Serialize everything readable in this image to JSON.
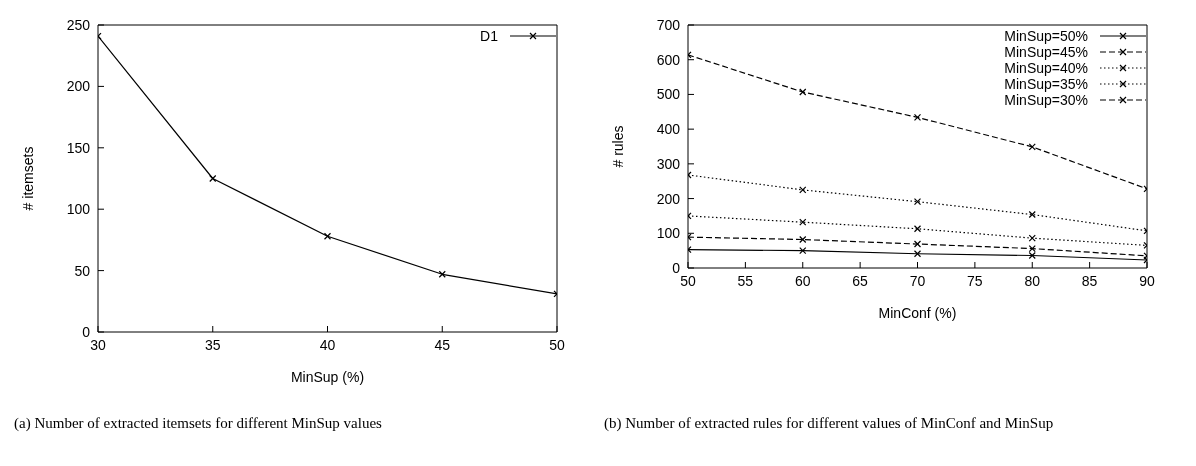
{
  "chart_data": [
    {
      "type": "line",
      "x": [
        30,
        35,
        40,
        45,
        50
      ],
      "xlabel": "MinSup (%)",
      "ylabel": "# itemsets",
      "xlim": [
        30,
        50
      ],
      "xticks": [
        30,
        35,
        40,
        45,
        50
      ],
      "ylim": [
        0,
        250
      ],
      "yticks": [
        0,
        50,
        100,
        150,
        200,
        250
      ],
      "grid": false,
      "legend": "top right",
      "marker": "cross",
      "series": [
        {
          "name": "D1",
          "color": "#000000",
          "line_style": "solid",
          "values": [
            241,
            125,
            78,
            47,
            31
          ]
        }
      ],
      "annotations": [
        "(a) Number of extracted itemsets for different MinSup values"
      ]
    },
    {
      "type": "line",
      "x": [
        50,
        60,
        70,
        80,
        90
      ],
      "xlabel": "MinConf (%)",
      "ylabel": "# rules",
      "xlim": [
        50,
        90
      ],
      "xticks": [
        50,
        55,
        60,
        65,
        70,
        75,
        80,
        85,
        90
      ],
      "ylim": [
        0,
        700
      ],
      "yticks": [
        0,
        100,
        200,
        300,
        400,
        500,
        600,
        700
      ],
      "grid": false,
      "legend": "top right",
      "marker": "cross",
      "series": [
        {
          "name": "MinSup=50%",
          "color": "#000000",
          "line_style": "solid",
          "values": [
            53,
            50,
            41,
            36,
            23
          ]
        },
        {
          "name": "MinSup=45%",
          "color": "#000000",
          "line_style": "dashed",
          "values": [
            89,
            82,
            69,
            56,
            35
          ]
        },
        {
          "name": "MinSup=40%",
          "color": "#000000",
          "line_style": "dotted",
          "values": [
            150,
            132,
            113,
            86,
            65
          ]
        },
        {
          "name": "MinSup=35%",
          "color": "#000000",
          "line_style": "dotted",
          "values": [
            268,
            225,
            191,
            154,
            107
          ]
        },
        {
          "name": "MinSup=30%",
          "color": "#000000",
          "line_style": "dashed",
          "values": [
            614,
            507,
            434,
            349,
            228
          ]
        }
      ],
      "annotations": [
        "(b) Number of extracted rules for different values of MinConf and MinSup"
      ]
    }
  ]
}
